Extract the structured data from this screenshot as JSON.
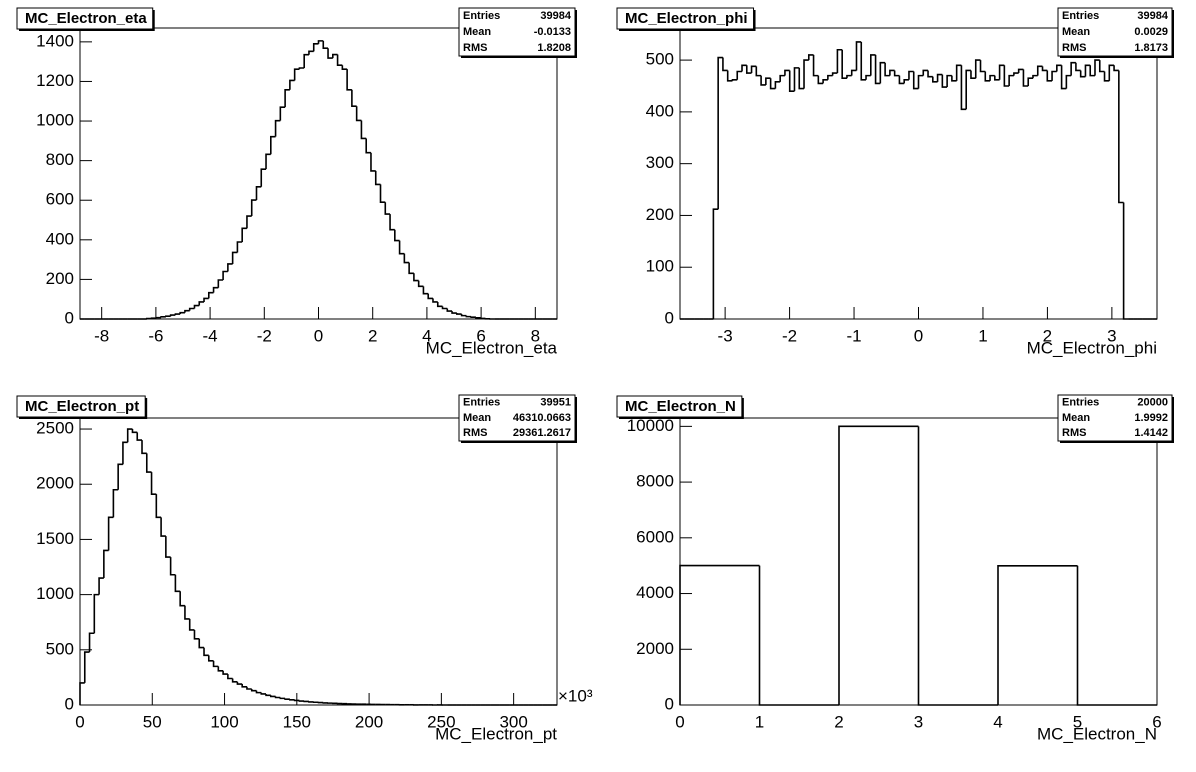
{
  "chart_data": [
    {
      "type": "histogram",
      "title": "MC_Electron_eta",
      "xlabel": "MC_Electron_eta",
      "color": "#000000",
      "xlim": [
        -8.8,
        8.8
      ],
      "ylim": [
        0,
        1470
      ],
      "xticks": [
        -8,
        -6,
        -4,
        -2,
        0,
        2,
        4,
        6,
        8
      ],
      "yticks": [
        0,
        200,
        400,
        600,
        800,
        1000,
        1200,
        1400
      ],
      "bins": [
        -8.8,
        -8.624,
        -8.448,
        -8.272,
        -8.096,
        -7.92,
        -7.744,
        -7.568,
        -7.392,
        -7.216,
        -7.04,
        -6.864,
        -6.688,
        -6.512,
        -6.336,
        -6.16,
        -5.984,
        -5.808,
        -5.632,
        -5.456,
        -5.28,
        -5.104,
        -4.928,
        -4.752,
        -4.576,
        -4.4,
        -4.224,
        -4.048,
        -3.872,
        -3.696,
        -3.52,
        -3.344,
        -3.168,
        -2.992,
        -2.816,
        -2.64,
        -2.464,
        -2.288,
        -2.112,
        -1.936,
        -1.76,
        -1.584,
        -1.408,
        -1.232,
        -1.056,
        -0.88,
        -0.704,
        -0.528,
        -0.352,
        -0.176,
        0,
        0.176,
        0.352,
        0.528,
        0.704,
        0.88,
        1.056,
        1.232,
        1.408,
        1.584,
        1.76,
        1.936,
        2.112,
        2.288,
        2.464,
        2.64,
        2.816,
        2.992,
        3.168,
        3.344,
        3.52,
        3.696,
        3.872,
        4.048,
        4.224,
        4.4,
        4.576,
        4.752,
        4.928,
        5.104,
        5.28,
        5.456,
        5.632,
        5.808,
        5.984,
        6.16,
        6.336,
        6.512,
        6.688,
        6.864,
        7.04,
        7.216,
        7.392,
        7.568,
        7.744,
        7.92,
        8.096,
        8.272,
        8.448,
        8.624,
        8.8
      ],
      "values": [
        0,
        0,
        0,
        0,
        0,
        0,
        0,
        0,
        0,
        0,
        0,
        0,
        0,
        0,
        2,
        4,
        7,
        11,
        14,
        20,
        25,
        32,
        42,
        53,
        68,
        86,
        104,
        133,
        158,
        197,
        240,
        278,
        336,
        389,
        458,
        520,
        601,
        668,
        757,
        832,
        921,
        1002,
        1070,
        1158,
        1205,
        1262,
        1268,
        1335,
        1352,
        1390,
        1405,
        1368,
        1318,
        1336,
        1282,
        1262,
        1158,
        1075,
        1003,
        912,
        840,
        748,
        680,
        590,
        530,
        451,
        396,
        330,
        285,
        231,
        194,
        165,
        128,
        104,
        86,
        64,
        53,
        40,
        30,
        25,
        17,
        12,
        9,
        6,
        3,
        1,
        0,
        0,
        0,
        0,
        0,
        0,
        0,
        0,
        0,
        0,
        0,
        0,
        0,
        0
      ],
      "stats": [
        {
          "label": "Entries",
          "value": 39984
        },
        {
          "label": "Mean",
          "value": -0.0133
        },
        {
          "label": "RMS",
          "value": 1.8208
        }
      ]
    },
    {
      "type": "histogram",
      "title": "MC_Electron_phi",
      "xlabel": "MC_Electron_phi",
      "color": "#000000",
      "xlim": [
        -3.7,
        3.7
      ],
      "ylim": [
        0,
        562
      ],
      "xticks": [
        -3,
        -2,
        -1,
        0,
        1,
        2,
        3
      ],
      "yticks": [
        0,
        100,
        200,
        300,
        400,
        500
      ],
      "bins": [
        -3.7,
        -3.626,
        -3.552,
        -3.478,
        -3.404,
        -3.33,
        -3.256,
        -3.182,
        -3.108,
        -3.034,
        -2.96,
        -2.886,
        -2.812,
        -2.738,
        -2.664,
        -2.59,
        -2.516,
        -2.442,
        -2.368,
        -2.294,
        -2.22,
        -2.146,
        -2.072,
        -1.998,
        -1.924,
        -1.85,
        -1.776,
        -1.702,
        -1.628,
        -1.554,
        -1.48,
        -1.406,
        -1.332,
        -1.258,
        -1.184,
        -1.11,
        -1.036,
        -0.962,
        -0.888,
        -0.814,
        -0.74,
        -0.666,
        -0.592,
        -0.518,
        -0.444,
        -0.37,
        -0.296,
        -0.222,
        -0.148,
        -0.074,
        0,
        0.074,
        0.148,
        0.222,
        0.296,
        0.37,
        0.444,
        0.518,
        0.592,
        0.666,
        0.74,
        0.814,
        0.888,
        0.962,
        1.036,
        1.11,
        1.184,
        1.258,
        1.332,
        1.406,
        1.48,
        1.554,
        1.628,
        1.702,
        1.776,
        1.85,
        1.924,
        1.998,
        2.072,
        2.146,
        2.22,
        2.294,
        2.368,
        2.442,
        2.516,
        2.59,
        2.664,
        2.738,
        2.812,
        2.886,
        2.96,
        3.034,
        3.108,
        3.182,
        3.256,
        3.33,
        3.404,
        3.478,
        3.552,
        3.626,
        3.7
      ],
      "values": [
        0,
        0,
        0,
        0,
        0,
        0,
        0,
        212,
        505,
        480,
        460,
        462,
        478,
        490,
        475,
        488,
        470,
        452,
        465,
        445,
        458,
        470,
        480,
        440,
        485,
        445,
        500,
        510,
        470,
        455,
        462,
        470,
        475,
        520,
        465,
        470,
        480,
        535,
        462,
        470,
        510,
        455,
        495,
        470,
        480,
        470,
        455,
        462,
        478,
        445,
        470,
        480,
        468,
        458,
        472,
        448,
        470,
        460,
        490,
        405,
        480,
        465,
        500,
        478,
        460,
        470,
        462,
        490,
        450,
        470,
        475,
        482,
        450,
        465,
        470,
        488,
        480,
        460,
        478,
        490,
        445,
        470,
        495,
        480,
        468,
        490,
        470,
        500,
        478,
        460,
        490,
        480,
        225,
        0,
        0,
        0,
        0,
        0,
        0,
        0
      ],
      "stats": [
        {
          "label": "Entries",
          "value": 39984
        },
        {
          "label": "Mean",
          "value": 0.0029
        },
        {
          "label": "RMS",
          "value": 1.8173
        }
      ]
    },
    {
      "type": "histogram",
      "title": "MC_Electron_pt",
      "xlabel": "MC_Electron_pt",
      "x_multiplier": "×10³",
      "color": "#000000",
      "xlim": [
        0,
        330
      ],
      "ylim": [
        0,
        2600
      ],
      "xticks": [
        0,
        50,
        100,
        150,
        200,
        250,
        300
      ],
      "yticks": [
        0,
        500,
        1000,
        1500,
        2000,
        2500
      ],
      "bins": [
        0,
        3.3,
        6.6,
        9.9,
        13.2,
        16.5,
        19.8,
        23.1,
        26.4,
        29.7,
        33,
        36.3,
        39.6,
        42.9,
        46.2,
        49.5,
        52.8,
        56.1,
        59.4,
        62.7,
        66,
        69.3,
        72.6,
        75.9,
        79.2,
        82.5,
        85.8,
        89.1,
        92.4,
        95.7,
        99,
        102.3,
        105.6,
        108.9,
        112.2,
        115.5,
        118.8,
        122.1,
        125.4,
        128.7,
        132,
        135.3,
        138.6,
        141.9,
        145.2,
        148.5,
        151.8,
        155.1,
        158.4,
        161.7,
        165,
        168.3,
        171.6,
        174.9,
        178.2,
        181.5,
        184.8,
        188.1,
        191.4,
        194.7,
        198,
        201.3,
        204.6,
        207.9,
        211.2,
        214.5,
        217.8,
        221.1,
        224.4,
        227.7,
        231,
        234.3,
        237.6,
        240.9,
        244.2,
        247.5,
        250.8,
        254.1,
        257.4,
        260.7,
        264,
        267.3,
        270.6,
        273.9,
        277.2,
        280.5,
        283.8,
        287.1,
        290.4,
        293.7,
        297,
        300.3,
        303.6,
        306.9,
        310.2,
        313.5,
        316.8,
        320.1,
        323.4,
        326.7,
        330
      ],
      "values": [
        200,
        480,
        650,
        1000,
        1150,
        1400,
        1700,
        1950,
        2180,
        2380,
        2500,
        2470,
        2400,
        2280,
        2110,
        1910,
        1700,
        1530,
        1340,
        1180,
        1030,
        900,
        780,
        680,
        600,
        520,
        450,
        400,
        350,
        310,
        280,
        240,
        210,
        190,
        165,
        145,
        130,
        112,
        100,
        88,
        78,
        68,
        60,
        53,
        47,
        41,
        36,
        32,
        28,
        25,
        22,
        19,
        17,
        15,
        13,
        12,
        10,
        9,
        8,
        7,
        6,
        5,
        5,
        4,
        4,
        3,
        3,
        2,
        2,
        2,
        1,
        1,
        1,
        1,
        0,
        1,
        0,
        0,
        0,
        0,
        0,
        0,
        0,
        0,
        0,
        0,
        0,
        0,
        0,
        0,
        0,
        0,
        0,
        0,
        0,
        0,
        0,
        0,
        0,
        0
      ],
      "stats": [
        {
          "label": "Entries",
          "value": 39951
        },
        {
          "label": "Mean",
          "value": 46310.0663
        },
        {
          "label": "RMS",
          "value": 29361.2617
        }
      ]
    },
    {
      "type": "histogram",
      "title": "MC_Electron_N",
      "xlabel": "MC_Electron_N",
      "color": "#000000",
      "xlim": [
        0,
        6
      ],
      "ylim": [
        0,
        10300
      ],
      "xticks": [
        0,
        1,
        2,
        3,
        4,
        5,
        6
      ],
      "yticks": [
        0,
        2000,
        4000,
        6000,
        8000,
        10000
      ],
      "bins": [
        0,
        1,
        2,
        3,
        4,
        5,
        6
      ],
      "values": [
        5004,
        0,
        10000,
        0,
        4996,
        0
      ],
      "stats": [
        {
          "label": "Entries",
          "value": 20000
        },
        {
          "label": "Mean",
          "value": 1.9992
        },
        {
          "label": "RMS",
          "value": 1.4142
        }
      ]
    }
  ]
}
